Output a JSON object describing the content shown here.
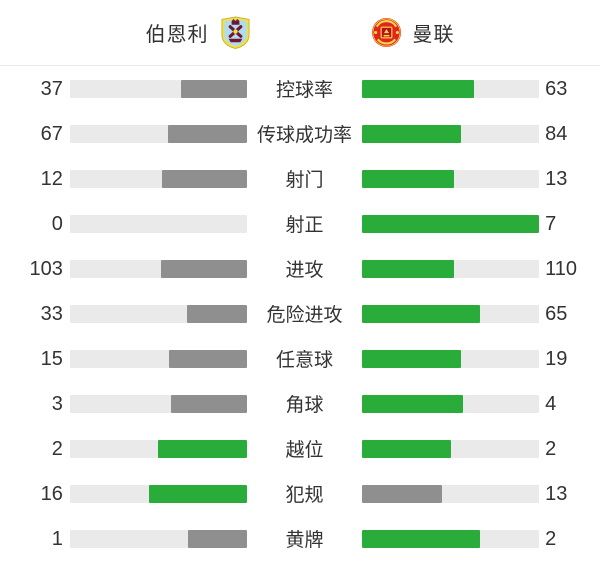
{
  "header": {
    "home_team": {
      "name": "伯恩利",
      "crest": "burnley-crest"
    },
    "away_team": {
      "name": "曼联",
      "crest": "manutd-crest"
    }
  },
  "colors": {
    "green": "#2aac3a",
    "gray": "#8f8f8f",
    "track": "#eaeaea",
    "text": "#333333",
    "divider": "#e9e9e9",
    "background": "#ffffff",
    "burnley_crest_blue": "#aedcf0",
    "burnley_crest_yellow": "#f2df4e",
    "burnley_crest_claret": "#72152f",
    "manutd_crest_red": "#e0251c",
    "manutd_crest_dark_red": "#b90f1d",
    "manutd_crest_yellow": "#ffd84d"
  },
  "chart_data": {
    "type": "bar",
    "orientation": "horizontal-paired",
    "title": "",
    "categories": [
      "控球率",
      "传球成功率",
      "射门",
      "射正",
      "进攻",
      "危险进攻",
      "任意球",
      "角球",
      "越位",
      "犯规",
      "黄牌"
    ],
    "series": [
      {
        "name": "伯恩利",
        "values": [
          37,
          67,
          12,
          0,
          103,
          33,
          15,
          3,
          2,
          16,
          1
        ]
      },
      {
        "name": "曼联",
        "values": [
          63,
          84,
          13,
          7,
          110,
          65,
          19,
          4,
          2,
          13,
          2
        ]
      }
    ],
    "bar_rule": "fill fraction = value / (home + away); home bar anchored right, away bar anchored left",
    "color_rule": "higher or equal value rendered green, lower value rendered gray",
    "legend_position": "none",
    "grid": false
  }
}
